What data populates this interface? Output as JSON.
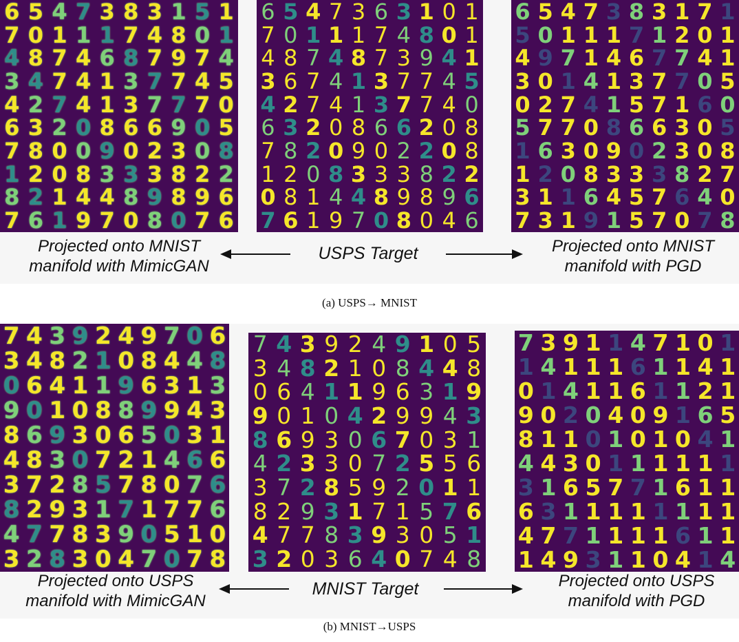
{
  "colors": {
    "grid_bg": "#440a55",
    "bright": "#f5e62a",
    "mid": "#7fd07a",
    "dim": "#2f8d8a",
    "faint": "#3a5a8c"
  },
  "figure_a": {
    "caption": "(a) USPS→ MNIST",
    "left_label_line1": "Projected onto MNIST",
    "left_label_line2": "manifold with MimicGAN",
    "center_label": "USPS Target",
    "right_label_line1": "Projected onto MNIST",
    "right_label_line2": "manifold with PGD",
    "left_grid": [
      "6547383151",
      "7011174801",
      "4874687974",
      "3474137745",
      "4274137770",
      "6320866905",
      "7800902308",
      "1208333822",
      "8214489896",
      "7619708076"
    ],
    "center_grid": [
      "6547363101",
      "7011174801",
      "4874873941",
      "3674137745",
      "4274137740",
      "6320866208",
      "7820902208",
      "1208333822",
      "0814489896",
      "7619708046"
    ],
    "right_grid": [
      "6547383171",
      "5011171201",
      "4971467741",
      "3014137705",
      "0274157160",
      "5770866305",
      "1630902308",
      "1208333827",
      "3116457640",
      "7319157078"
    ]
  },
  "figure_b": {
    "caption": "(b) MNIST→USPS",
    "left_label_line1": "Projected onto USPS",
    "left_label_line2": "manifold with MimicGAN",
    "center_label": "MNIST Target",
    "right_label_line1": "Projected onto USPS",
    "right_label_line2": "manifold with PGD",
    "left_grid": [
      "7439249706",
      "3482108448",
      "0641196313",
      "9010889943",
      "8693065031",
      "4830721466",
      "3728578076",
      "8293171776",
      "4778390510",
      "3283047078"
    ],
    "center_grid": [
      "7439249105",
      "3482108448",
      "0641196319",
      "9010429943",
      "8693067031",
      "4233072556",
      "3728592011",
      "8293171576",
      "4778393051",
      "3203640748"
    ],
    "right_grid": [
      "7391147101",
      "1411161141",
      "0141161121",
      "9020409165",
      "8110101041",
      "4430111111",
      "3165771611",
      "6311111111",
      "4771111611",
      "1493110414"
    ]
  }
}
